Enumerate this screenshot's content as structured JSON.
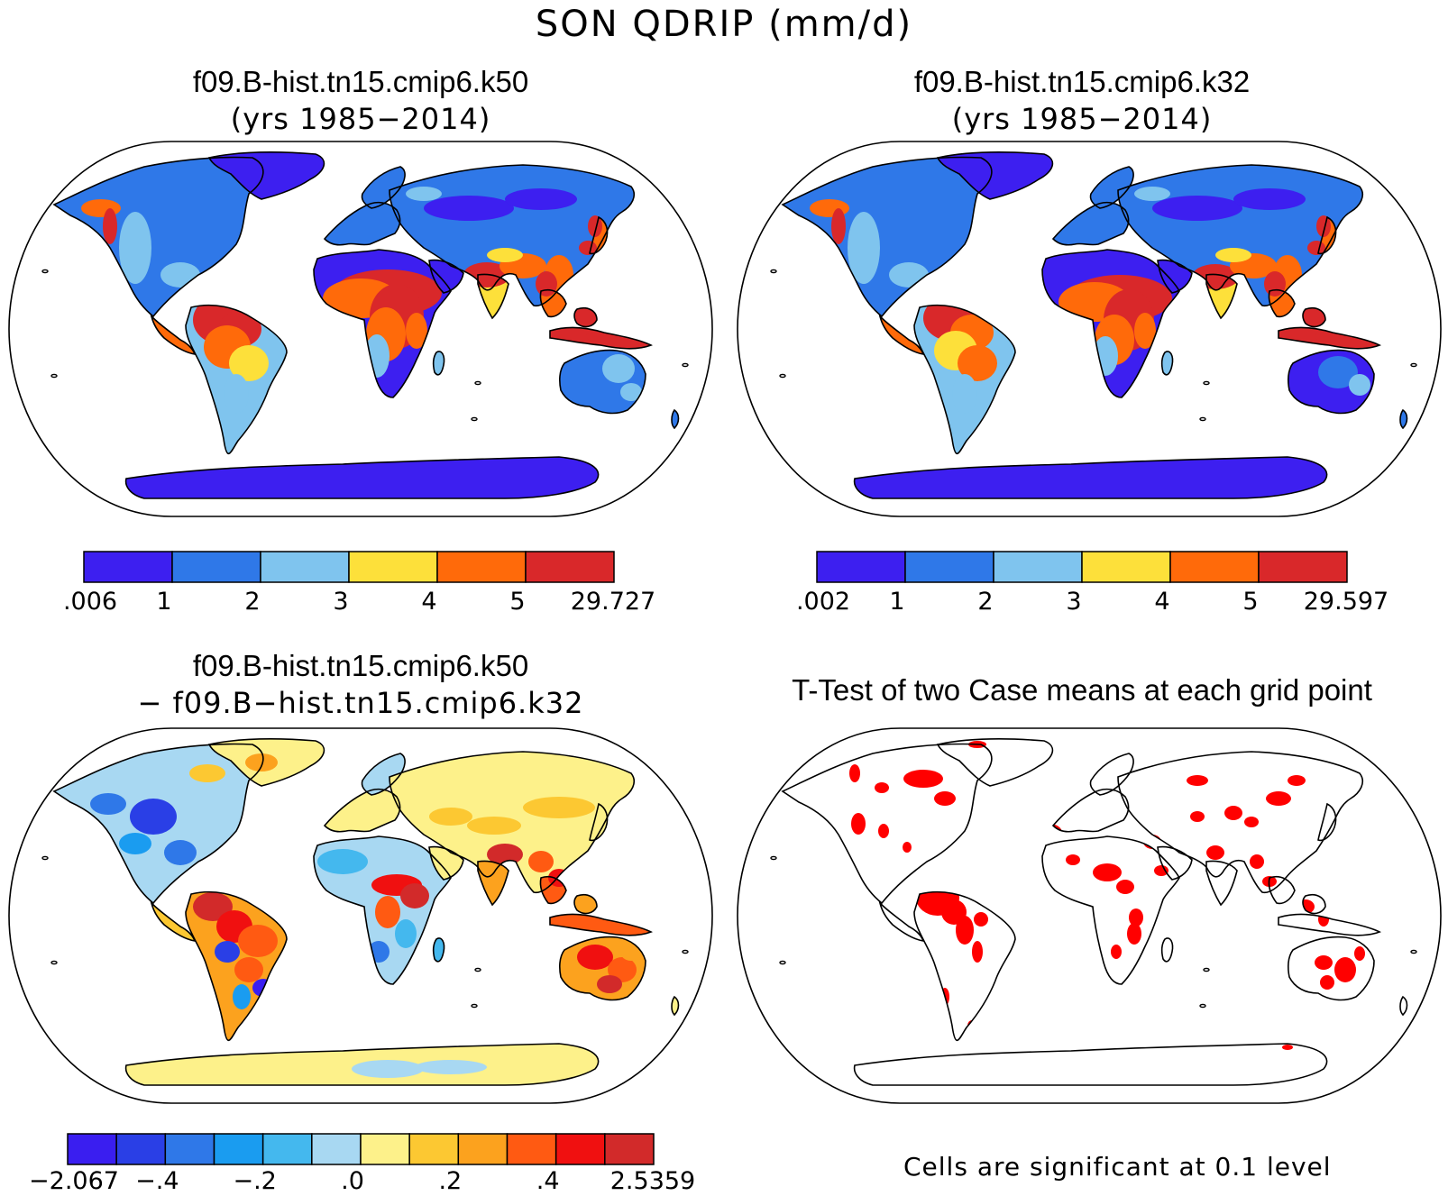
{
  "figure_title": "SON QDRIP (mm/d)",
  "panels": [
    {
      "title_line1": "f09.B-hist.tn15.cmip6.k50",
      "title_line2": "(yrs 1985−2014)",
      "colorbar": {
        "labels": [
          ".006",
          "1",
          "2",
          "3",
          "4",
          "5",
          "29.727"
        ],
        "colors": [
          "#3d1ff0",
          "#2f78e8",
          "#7fc4ee",
          "#fde03a",
          "#ff6a0a",
          "#d9282a"
        ]
      }
    },
    {
      "title_line1": "f09.B-hist.tn15.cmip6.k32",
      "title_line2": "(yrs 1985−2014)",
      "colorbar": {
        "labels": [
          ".002",
          "1",
          "2",
          "3",
          "4",
          "5",
          "29.597"
        ],
        "colors": [
          "#3d1ff0",
          "#2f78e8",
          "#7fc4ee",
          "#fde03a",
          "#ff6a0a",
          "#d9282a"
        ]
      }
    },
    {
      "title_line1": "f09.B-hist.tn15.cmip6.k50",
      "title_line2": "− f09.B−hist.tn15.cmip6.k32",
      "colorbar": {
        "labels": [
          "−2.067",
          "−.4",
          "−.2",
          ".0",
          ".2",
          ".4",
          "2.5359"
        ],
        "colors": [
          "#3a1ef0",
          "#2a3fe6",
          "#2f78e8",
          "#1a9cf0",
          "#44b8ee",
          "#a8d8f2",
          "#fdf18a",
          "#fcc832",
          "#fca21e",
          "#ff5a12",
          "#f01010",
          "#d22a2a"
        ]
      }
    },
    {
      "title_line1": "T-Test of two Case means at each grid point",
      "note": "Cells are significant at 0.1 level",
      "significant_color": "#ff0000"
    }
  ]
}
